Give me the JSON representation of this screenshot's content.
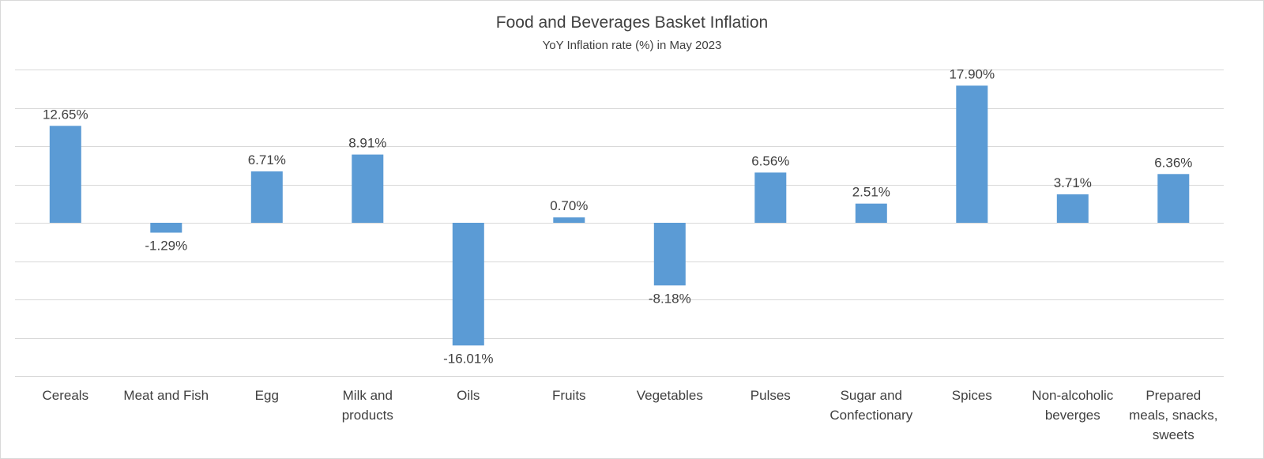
{
  "chart_data": {
    "type": "bar",
    "title": "Food and Beverages Basket Inflation",
    "subtitle": "YoY Inflation rate (%) in May 2023",
    "categories": [
      [
        "Cereals"
      ],
      [
        "Meat and Fish"
      ],
      [
        "Egg"
      ],
      [
        "Milk and",
        "products"
      ],
      [
        "Oils"
      ],
      [
        "Fruits"
      ],
      [
        "Vegetables"
      ],
      [
        "Pulses"
      ],
      [
        "Sugar and",
        "Confectionary"
      ],
      [
        "Spices"
      ],
      [
        "Non-alcoholic",
        "beverges"
      ],
      [
        "Prepared",
        "meals, snacks,",
        "sweets"
      ]
    ],
    "values": [
      12.65,
      -1.29,
      6.71,
      8.91,
      -16.01,
      0.7,
      -8.18,
      6.56,
      2.51,
      17.9,
      3.71,
      6.36
    ],
    "value_labels": [
      "12.65%",
      "-1.29%",
      "6.71%",
      "8.91%",
      "-16.01%",
      "0.70%",
      "-8.18%",
      "6.56%",
      "2.51%",
      "17.90%",
      "3.71%",
      "6.36%"
    ],
    "ylim": [
      -20,
      20
    ],
    "gridlines": [
      -20,
      -15,
      -10,
      -5,
      0,
      5,
      10,
      15,
      20
    ],
    "grid": true,
    "bar_color": "#5b9bd5",
    "grid_color": "#d9d9d9",
    "text_color": "#404040"
  }
}
